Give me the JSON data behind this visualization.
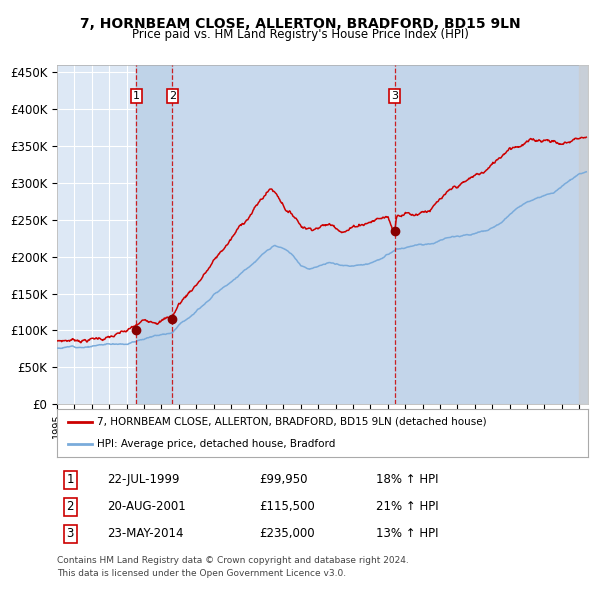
{
  "title": "7, HORNBEAM CLOSE, ALLERTON, BRADFORD, BD15 9LN",
  "subtitle": "Price paid vs. HM Land Registry's House Price Index (HPI)",
  "ylim": [
    0,
    460000
  ],
  "xlim_start": 1995.0,
  "xlim_end": 2025.5,
  "background_color": "#ffffff",
  "plot_bg_color": "#dde8f5",
  "grid_color": "#ffffff",
  "sale_color": "#cc0000",
  "hpi_color": "#7aabdb",
  "sale_marker_color": "#880000",
  "vline_color": "#cc0000",
  "shade_color": "#c5d8ee",
  "transactions": [
    {
      "label": "1",
      "date_year": 1999.55,
      "price": 99950,
      "date_str": "22-JUL-1999"
    },
    {
      "label": "2",
      "date_year": 2001.63,
      "price": 115500,
      "date_str": "20-AUG-2001"
    },
    {
      "label": "3",
      "date_year": 2014.39,
      "price": 235000,
      "date_str": "23-MAY-2014"
    }
  ],
  "legend_label_red": "7, HORNBEAM CLOSE, ALLERTON, BRADFORD, BD15 9LN (detached house)",
  "legend_label_blue": "HPI: Average price, detached house, Bradford",
  "footer_lines": [
    "Contains HM Land Registry data © Crown copyright and database right 2024.",
    "This data is licensed under the Open Government Licence v3.0."
  ],
  "table_rows": [
    {
      "num": "1",
      "date": "22-JUL-1999",
      "price": "£99,950",
      "hpi": "18% ↑ HPI"
    },
    {
      "num": "2",
      "date": "20-AUG-2001",
      "price": "£115,500",
      "hpi": "21% ↑ HPI"
    },
    {
      "num": "3",
      "date": "23-MAY-2014",
      "price": "£235,000",
      "hpi": "13% ↑ HPI"
    }
  ],
  "hpi_keypoints_x": [
    1995,
    1996,
    1997,
    1998,
    1999,
    1999.55,
    2000,
    2001,
    2001.63,
    2002,
    2003,
    2004,
    2005,
    2006,
    2007,
    2007.5,
    2008,
    2008.5,
    2009,
    2009.5,
    2010,
    2010.5,
    2011,
    2011.5,
    2012,
    2012.5,
    2013,
    2013.5,
    2014,
    2014.39,
    2014.5,
    2015,
    2015.5,
    2016,
    2016.5,
    2017,
    2017.5,
    2018,
    2018.5,
    2019,
    2019.5,
    2020,
    2020.5,
    2021,
    2021.5,
    2022,
    2022.5,
    2023,
    2023.5,
    2024,
    2024.5,
    2025
  ],
  "hpi_keypoints_y": [
    76000,
    78500,
    81000,
    83500,
    86000,
    89000,
    93000,
    99000,
    103000,
    115000,
    135000,
    158000,
    178000,
    198000,
    218000,
    225000,
    220000,
    210000,
    195000,
    192000,
    196000,
    199000,
    198000,
    196000,
    195000,
    197000,
    200000,
    205000,
    210000,
    215000,
    217000,
    218000,
    220000,
    222000,
    224000,
    228000,
    232000,
    236000,
    238000,
    240000,
    242000,
    245000,
    252000,
    262000,
    272000,
    280000,
    282000,
    285000,
    290000,
    300000,
    308000,
    315000
  ],
  "red_keypoints_x": [
    1995,
    1996,
    1997,
    1998,
    1999,
    1999.55,
    2000,
    2001,
    2001.63,
    2002,
    2003,
    2004,
    2005,
    2006,
    2007,
    2007.3,
    2007.7,
    2008,
    2008.3,
    2008.7,
    2009,
    2009.5,
    2010,
    2010.5,
    2011,
    2011.5,
    2012,
    2012.5,
    2013,
    2013.5,
    2014,
    2014.39,
    2014.5,
    2015,
    2015.5,
    2016,
    2016.5,
    2017,
    2017.5,
    2018,
    2018.5,
    2019,
    2019.5,
    2020,
    2020.5,
    2021,
    2021.5,
    2022,
    2022.5,
    2023,
    2023.5,
    2024,
    2024.5,
    2025
  ],
  "red_keypoints_y": [
    86000,
    88000,
    90000,
    92000,
    95000,
    99950,
    105000,
    112000,
    115500,
    132000,
    160000,
    190000,
    218000,
    248000,
    278000,
    285000,
    275000,
    265000,
    255000,
    248000,
    238000,
    235000,
    240000,
    242000,
    240000,
    238000,
    242000,
    248000,
    252000,
    256000,
    258000,
    235000,
    262000,
    268000,
    265000,
    272000,
    276000,
    285000,
    290000,
    296000,
    300000,
    306000,
    310000,
    318000,
    330000,
    345000,
    350000,
    355000,
    355000,
    358000,
    358000,
    352000,
    356000,
    362000
  ]
}
